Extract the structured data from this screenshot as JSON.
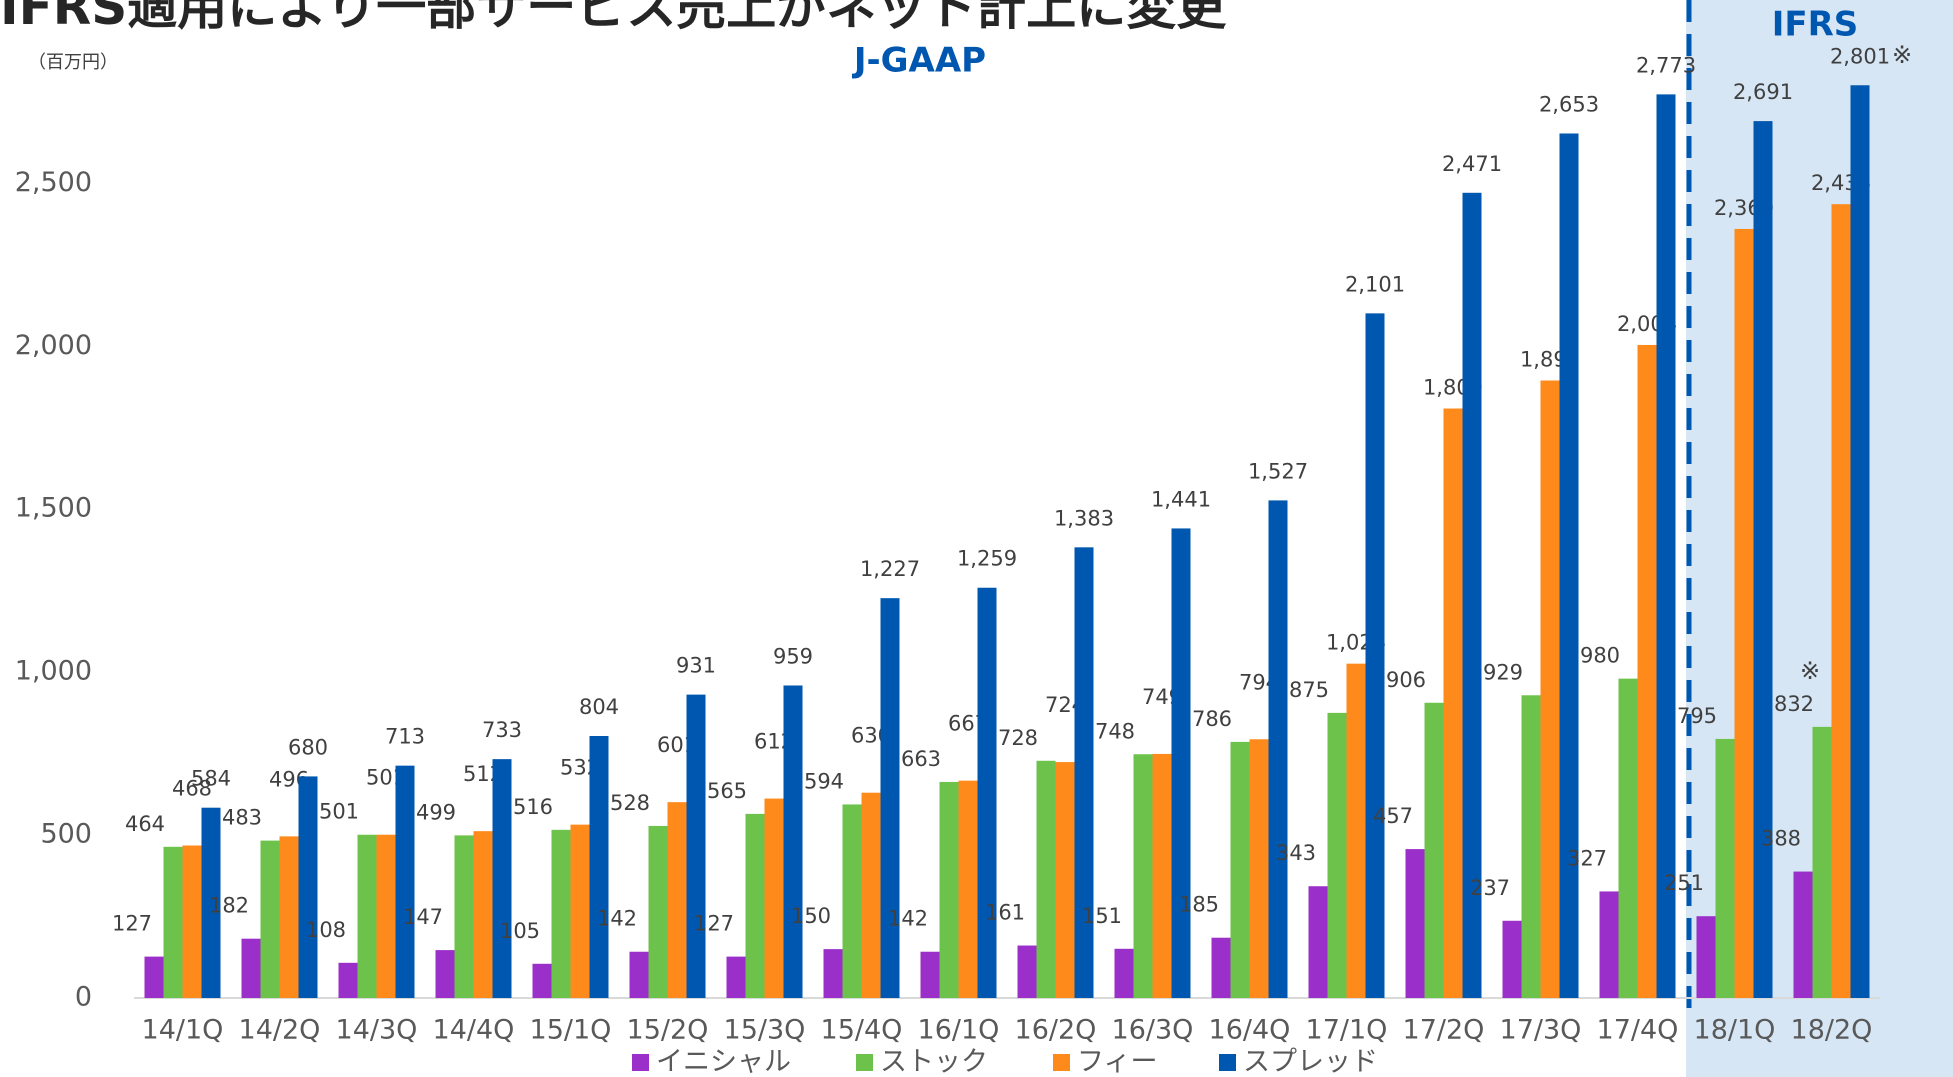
{
  "chart_data": {
    "type": "bar",
    "title": "IFRS適用により一部サービス売上がネット計上に変更",
    "unit_label": "（百万円）",
    "period_labels": [
      "J-GAAP",
      "IFRS"
    ],
    "annotations": [
      "※",
      "※"
    ],
    "categories": [
      "14/1Q",
      "14/2Q",
      "14/3Q",
      "14/4Q",
      "15/1Q",
      "15/2Q",
      "15/3Q",
      "15/4Q",
      "16/1Q",
      "16/2Q",
      "16/3Q",
      "16/4Q",
      "17/1Q",
      "17/2Q",
      "17/3Q",
      "17/4Q",
      "18/1Q",
      "18/2Q"
    ],
    "series": [
      {
        "name": "イニシャル",
        "color": "#9b2fc9",
        "values": [
          127,
          182,
          108,
          147,
          105,
          142,
          127,
          150,
          142,
          161,
          151,
          185,
          343,
          457,
          237,
          327,
          251,
          388
        ]
      },
      {
        "name": "ストック",
        "color": "#6cc24a",
        "values": [
          464,
          483,
          501,
          499,
          516,
          528,
          565,
          594,
          663,
          728,
          748,
          786,
          875,
          906,
          929,
          980,
          795,
          832
        ]
      },
      {
        "name": "フィー",
        "color": "#ff8a1c",
        "values": [
          468,
          496,
          501,
          512,
          532,
          601,
          612,
          630,
          667,
          724,
          749,
          794,
          1026,
          1809,
          1895,
          2004,
          2360,
          2436
        ],
        "value_labels": [
          "468",
          "496",
          "501",
          "512",
          "532",
          "601",
          "612",
          "630",
          "667",
          "724",
          "749",
          "794",
          "1,026",
          "1,809",
          "1,895",
          "2,004",
          "2,360",
          "2,436"
        ]
      },
      {
        "name": "スプレッド",
        "color": "#0057b0",
        "values": [
          584,
          680,
          713,
          733,
          804,
          931,
          959,
          1227,
          1259,
          1383,
          1441,
          1527,
          2101,
          2471,
          2653,
          2773,
          2691,
          2801
        ],
        "value_labels": [
          "584",
          "680",
          "713",
          "733",
          "804",
          "931",
          "959",
          "1,227",
          "1,259",
          "1,383",
          "1,441",
          "1,527",
          "2,101",
          "2,471",
          "2,653",
          "2,773",
          "2,691",
          "2,801"
        ]
      }
    ],
    "ylim": [
      0,
      2900
    ],
    "yticks": [
      0,
      500,
      {
        "value": 1000,
        "label": "1,000"
      },
      {
        "value": 1500,
        "label": "1,500"
      },
      {
        "value": 2000,
        "label": "2,000"
      },
      {
        "value": 2500,
        "label": "2,500"
      }
    ],
    "grid": false,
    "legend": "bottom"
  }
}
